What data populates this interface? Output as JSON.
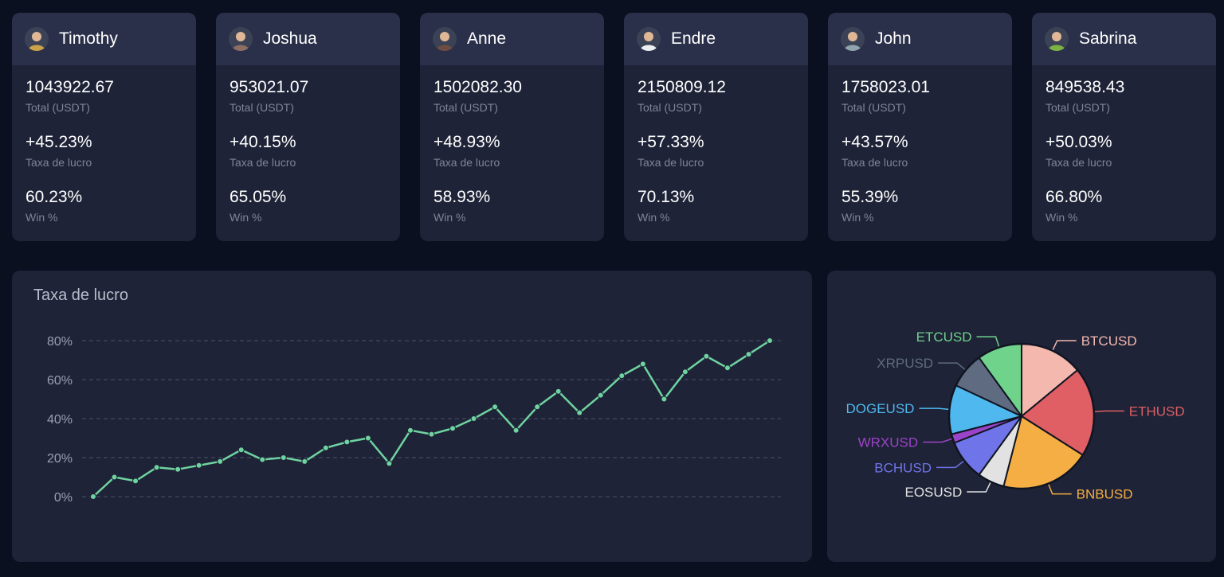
{
  "traders": [
    {
      "name": "Timothy",
      "total": "1043922.67",
      "total_label": "Total (USDT)",
      "profit": "+45.23%",
      "profit_label": "Taxa de lucro",
      "win": "60.23%",
      "win_label": "Win %",
      "avatar_color": "#c9a24a"
    },
    {
      "name": "Joshua",
      "total": "953021.07",
      "total_label": "Total (USDT)",
      "profit": "+40.15%",
      "profit_label": "Taxa de lucro",
      "win": "65.05%",
      "win_label": "Win %",
      "avatar_color": "#8d6e63"
    },
    {
      "name": "Anne",
      "total": "1502082.30",
      "total_label": "Total (USDT)",
      "profit": "+48.93%",
      "profit_label": "Taxa de lucro",
      "win": "58.93%",
      "win_label": "Win %",
      "avatar_color": "#6d4c41"
    },
    {
      "name": "Endre",
      "total": "2150809.12",
      "total_label": "Total (USDT)",
      "profit": "+57.33%",
      "profit_label": "Taxa de lucro",
      "win": "70.13%",
      "win_label": "Win %",
      "avatar_color": "#eceff1"
    },
    {
      "name": "John",
      "total": "1758023.01",
      "total_label": "Total (USDT)",
      "profit": "+43.57%",
      "profit_label": "Taxa de lucro",
      "win": "55.39%",
      "win_label": "Win %",
      "avatar_color": "#90a4ae"
    },
    {
      "name": "Sabrina",
      "total": "849538.43",
      "total_label": "Total (USDT)",
      "profit": "+50.03%",
      "profit_label": "Taxa de lucro",
      "win": "66.80%",
      "win_label": "Win %",
      "avatar_color": "#7cb342"
    }
  ],
  "line_chart": {
    "title": "Taxa de lucro",
    "chart_data": {
      "type": "line",
      "title": "Taxa de lucro",
      "ylabel": "",
      "xlabel": "",
      "ylim": [
        0,
        80
      ],
      "yticks": [
        "0%",
        "20%",
        "40%",
        "60%",
        "80%"
      ],
      "ytick_values": [
        0,
        20,
        40,
        60,
        80
      ],
      "grid": true,
      "series": [
        {
          "name": "Taxa de lucro",
          "color": "#6fd3a0",
          "values": [
            0,
            10,
            8,
            15,
            14,
            16,
            18,
            24,
            19,
            20,
            18,
            25,
            28,
            30,
            17,
            34,
            32,
            35,
            40,
            46,
            34,
            46,
            54,
            43,
            52,
            62,
            68,
            50,
            64,
            72,
            66,
            73,
            80
          ]
        }
      ]
    }
  },
  "pie_chart": {
    "chart_data": {
      "type": "pie",
      "slices": [
        {
          "label": "BTCUSD",
          "value": 14,
          "color": "#f4b8ae"
        },
        {
          "label": "ETHUSD",
          "value": 20,
          "color": "#df5f64"
        },
        {
          "label": "BNBUSD",
          "value": 20,
          "color": "#f4ae43"
        },
        {
          "label": "EOSUSD",
          "value": 6,
          "color": "#e2e2e2"
        },
        {
          "label": "BCHUSD",
          "value": 9,
          "color": "#6f74e8"
        },
        {
          "label": "WRXUSD",
          "value": 2,
          "color": "#9b43c9"
        },
        {
          "label": "DOGEUSD",
          "value": 11,
          "color": "#4fb8ef"
        },
        {
          "label": "XRPUSD",
          "value": 8,
          "color": "#5f6b80"
        },
        {
          "label": "ETCUSD",
          "value": 10,
          "color": "#6fd38c"
        }
      ]
    }
  }
}
